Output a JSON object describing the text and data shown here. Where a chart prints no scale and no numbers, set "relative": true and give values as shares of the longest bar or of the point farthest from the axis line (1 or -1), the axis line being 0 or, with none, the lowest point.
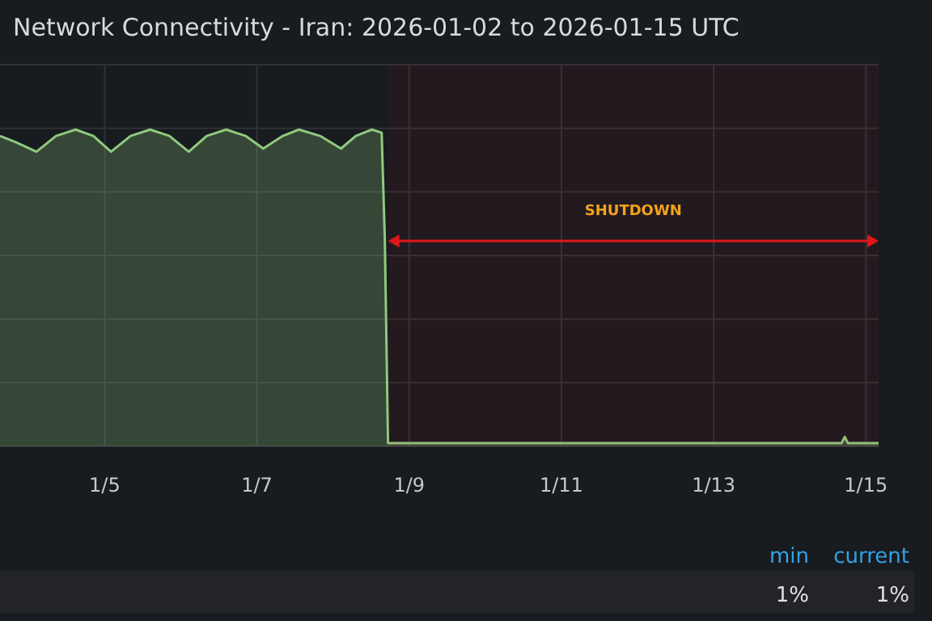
{
  "chart_data": {
    "type": "area",
    "title": "Network Connectivity - Iran: 2026-01-02 to 2026-01-15 UTC",
    "relative": true,
    "grid": true,
    "xlim": [
      "2026-01-03T15:00",
      "2026-01-15T04:00"
    ],
    "xticks": [
      {
        "value": "2026-01-05",
        "label": "1/5"
      },
      {
        "value": "2026-01-07",
        "label": "1/7"
      },
      {
        "value": "2026-01-09",
        "label": "1/9"
      },
      {
        "value": "2026-01-11",
        "label": "1/11"
      },
      {
        "value": "2026-01-13",
        "label": "1/13"
      },
      {
        "value": "2026-01-15",
        "label": "1/15"
      }
    ],
    "bands": [
      {
        "axis": "x",
        "from": "2026-01-08T17:20",
        "to": "2026-01-15T04:00",
        "label": "SHUTDOWN",
        "color": "#e0161b"
      }
    ],
    "annotations": [
      "min",
      "current",
      "1%",
      "1%"
    ],
    "series": [
      {
        "color": "#8fc97f",
        "x": [
          "2026-01-03T15:00",
          "2026-01-03T20:00",
          "2026-01-04T02:30",
          "2026-01-04T08:40",
          "2026-01-04T14:50",
          "2026-01-04T20:25",
          "2026-01-05T02:00",
          "2026-01-05T08:10",
          "2026-01-05T14:20",
          "2026-01-05T20:25",
          "2026-01-06T02:30",
          "2026-01-06T08:10",
          "2026-01-06T14:20",
          "2026-01-06T20:25",
          "2026-01-07T02:00",
          "2026-01-07T08:10",
          "2026-01-07T13:15",
          "2026-01-07T19:55",
          "2026-01-08T02:30",
          "2026-01-08T07:10",
          "2026-01-08T12:15",
          "2026-01-08T15:20",
          "2026-01-08T16:20",
          "2026-01-08T17:20",
          "2026-01-10T00:00",
          "2026-01-12T03:00",
          "2026-01-14T16:20",
          "2026-01-14T17:20",
          "2026-01-14T18:20",
          "2026-01-15T04:00"
        ],
        "values": [
          0.98,
          0.96,
          0.93,
          0.98,
          1,
          0.98,
          0.93,
          0.98,
          1,
          0.98,
          0.93,
          0.98,
          1,
          0.98,
          0.94,
          0.98,
          1,
          0.98,
          0.94,
          0.98,
          1,
          0.99,
          0.65,
          0.01,
          0.01,
          0.01,
          0.01,
          0.03,
          0.01,
          0.01
        ]
      }
    ]
  }
}
